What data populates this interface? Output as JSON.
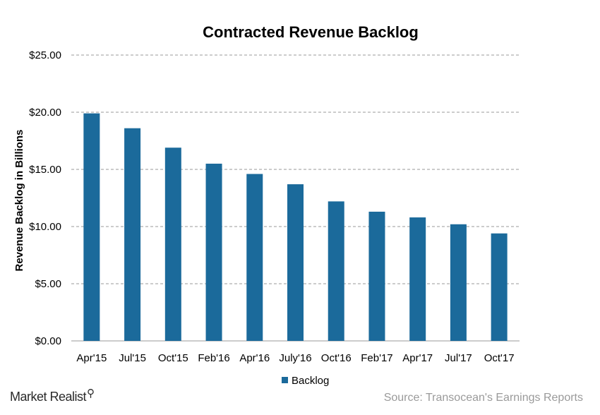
{
  "chart_data": {
    "type": "bar",
    "title": "Contracted Revenue Backlog",
    "ylabel": "Revenue Backlog in Billions",
    "xlabel": "",
    "categories": [
      "Apr'15",
      "Jul'15",
      "Oct'15",
      "Feb'16",
      "Apr'16",
      "July'16",
      "Oct'16",
      "Feb'17",
      "Apr'17",
      "Jul'17",
      "Oct'17"
    ],
    "series": [
      {
        "name": "Backlog",
        "values": [
          19.9,
          18.6,
          16.9,
          15.5,
          14.6,
          13.7,
          12.2,
          11.3,
          10.8,
          10.2,
          9.4
        ],
        "color": "#1b6a9b"
      }
    ],
    "ylim": [
      0,
      25
    ],
    "yticks": [
      0,
      5,
      10,
      15,
      20,
      25
    ],
    "ytick_labels": [
      "$0.00",
      "$5.00",
      "$10.00",
      "$15.00",
      "$20.00",
      "$25.00"
    ],
    "grid": true,
    "legend_position": "bottom"
  },
  "footer": {
    "brand": "Market Realist",
    "brand_icon": "magnifier-icon",
    "source": "Source: Transocean's Earnings Reports"
  }
}
